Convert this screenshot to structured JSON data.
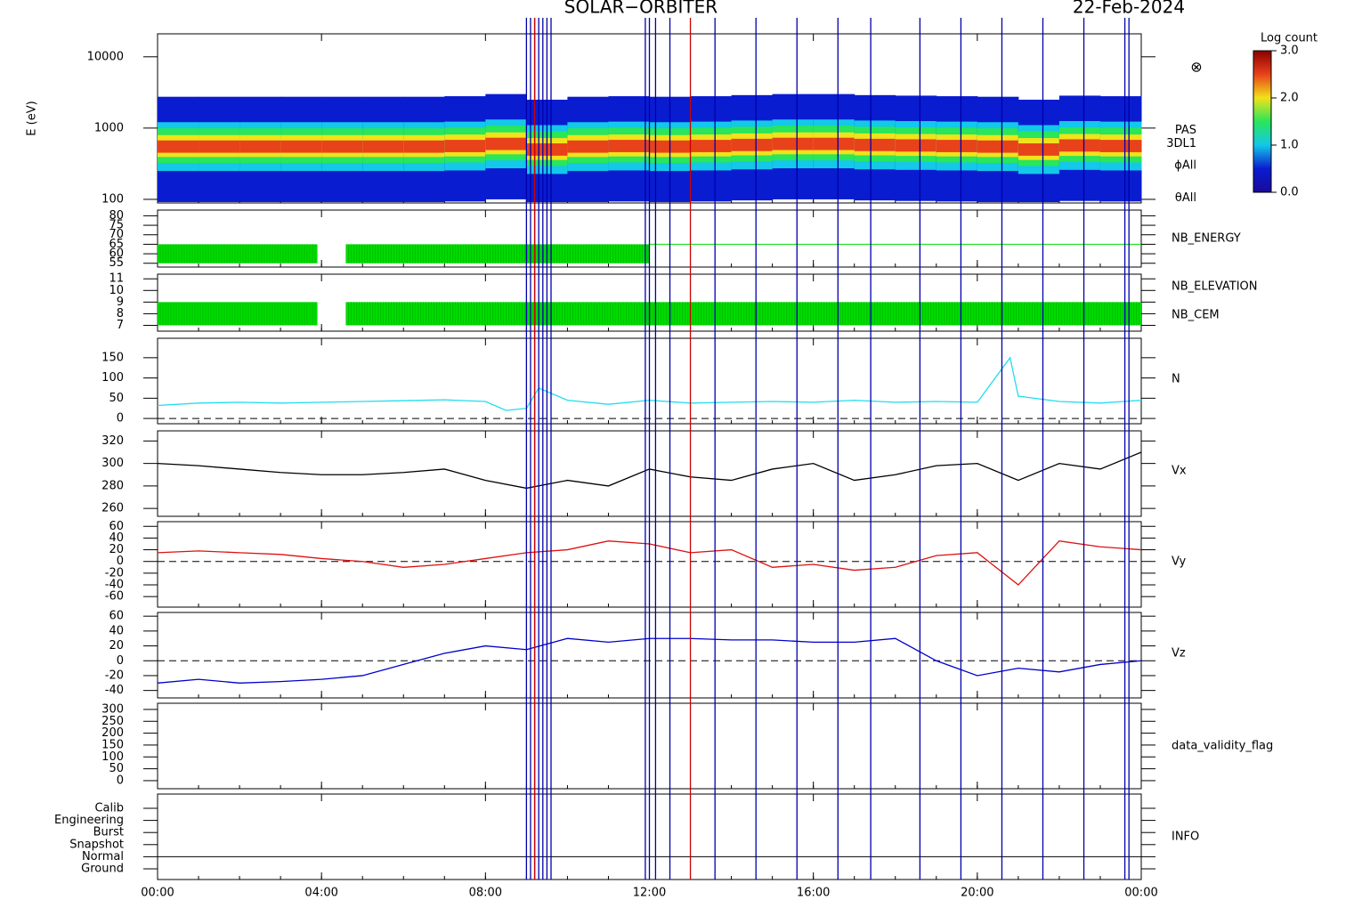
{
  "chart_data": [
    {
      "type": "spectrogram",
      "title": "SOLAR−ORBITER",
      "date": "22-Feb-2024",
      "ylabel": "E (eV)",
      "log": true,
      "ylim": [
        89,
        21000
      ],
      "yticks": [
        100,
        1000,
        10000
      ],
      "x": [
        0,
        1,
        2,
        3,
        4,
        5,
        6,
        7,
        8,
        9,
        10,
        11,
        12,
        13,
        14,
        15,
        16,
        17,
        18,
        19,
        20,
        21,
        22,
        23,
        24
      ],
      "values": [
        550,
        550,
        550,
        550,
        550,
        550,
        550,
        560,
        600,
        500,
        550,
        560,
        550,
        560,
        580,
        600,
        600,
        580,
        570,
        560,
        550,
        500,
        570,
        560,
        580
      ],
      "labels": [
        {
          "text": "PAS",
          "color": "#000000"
        },
        {
          "text": "3DL1",
          "color": "#000000"
        },
        {
          "text": "ϕAll",
          "color": "#000000"
        },
        {
          "text": "θAll",
          "color": "#000000"
        }
      ],
      "symbol": "⊗",
      "colorbar": {
        "title": "Log count",
        "lim": [
          0,
          3
        ],
        "ticks": [
          {
            "value": 0,
            "label": "0.0"
          },
          {
            "value": 1,
            "label": "1.0"
          },
          {
            "value": 2,
            "label": "2.0"
          },
          {
            "value": 3,
            "label": "3.0"
          }
        ]
      },
      "xlim": [
        0,
        24
      ],
      "xticks": [
        {
          "value": 0,
          "label": "00:00"
        },
        {
          "value": 4,
          "label": "04:00"
        },
        {
          "value": 8,
          "label": "08:00"
        },
        {
          "value": 12,
          "label": "12:00"
        },
        {
          "value": 16,
          "label": "16:00"
        },
        {
          "value": 20,
          "label": "20:00"
        },
        {
          "value": 24,
          "label": "00:00"
        }
      ],
      "event_lines": [
        {
          "color": "#0000aa",
          "x": [
            9.0,
            9.1,
            9.2,
            9.3,
            9.4,
            9.5,
            9.6,
            11.9,
            12.0,
            12.15,
            12.5,
            13.6,
            14.6,
            15.6,
            16.6,
            17.4,
            18.6,
            19.6,
            20.6,
            21.6,
            22.6,
            23.6,
            23.7
          ]
        },
        {
          "color": "#cc0000",
          "x": [
            9.2,
            13.0
          ]
        }
      ]
    },
    {
      "type": "fill",
      "ylim": [
        53,
        83
      ],
      "yticks": [
        55,
        60,
        65,
        70,
        75,
        80
      ],
      "labels": [
        {
          "text": "NB_ENERGY",
          "color": "#00cc00"
        }
      ],
      "color": "#00dd00",
      "bands": [
        {
          "lo": 55,
          "hi": 65,
          "x": [
            0,
            3.9
          ]
        },
        {
          "lo": 55,
          "hi": 65,
          "x": [
            4.6,
            12.0
          ]
        }
      ],
      "lines": [
        {
          "value": 65,
          "x": [
            12.0,
            24
          ]
        }
      ]
    },
    {
      "type": "fill",
      "ylim": [
        6.5,
        11.4
      ],
      "yticks": [
        7,
        8,
        9,
        10,
        11
      ],
      "labels": [
        {
          "text": "NB_ELEVATION",
          "color": "#00cc00"
        },
        {
          "text": "NB_CEM",
          "color": "#0000aa"
        }
      ],
      "color": "#00dd00",
      "bands": [
        {
          "lo": 7,
          "hi": 9,
          "x": [
            0,
            3.9
          ]
        },
        {
          "lo": 7,
          "hi": 9,
          "x": [
            4.6,
            24
          ]
        }
      ],
      "lines": []
    },
    {
      "type": "line",
      "ylim": [
        -13,
        198
      ],
      "yticks": [
        0,
        50,
        100,
        150
      ],
      "labels": [
        {
          "text": "N",
          "color": "#22ddee"
        }
      ],
      "refline": 0,
      "series": [
        {
          "color": "#22ddee",
          "x": [
            0,
            1,
            2,
            3,
            4,
            5,
            6,
            7,
            8,
            8.5,
            9,
            9.3,
            10,
            11,
            12,
            13,
            14,
            15,
            16,
            17,
            18,
            19,
            20,
            20.8,
            21,
            22,
            23,
            24
          ],
          "values": [
            32,
            38,
            40,
            38,
            40,
            42,
            44,
            46,
            42,
            20,
            25,
            75,
            45,
            35,
            45,
            38,
            40,
            42,
            40,
            45,
            40,
            42,
            40,
            150,
            55,
            42,
            38,
            45
          ]
        }
      ]
    },
    {
      "type": "line",
      "ylim": [
        253,
        329
      ],
      "yticks": [
        260,
        280,
        300,
        320
      ],
      "labels": [
        {
          "text": "Vx",
          "color": "#000000"
        }
      ],
      "series": [
        {
          "color": "#000000",
          "x": [
            0,
            1,
            2,
            3,
            4,
            5,
            6,
            7,
            8,
            9,
            10,
            11,
            12,
            13,
            14,
            15,
            16,
            17,
            18,
            19,
            20,
            21,
            22,
            23,
            24
          ],
          "values": [
            300,
            298,
            295,
            292,
            290,
            290,
            292,
            295,
            285,
            278,
            285,
            280,
            295,
            288,
            285,
            295,
            300,
            285,
            290,
            298,
            300,
            285,
            300,
            295,
            310
          ]
        }
      ]
    },
    {
      "type": "line",
      "ylim": [
        -78,
        68
      ],
      "yticks": [
        -60,
        -40,
        -20,
        0,
        20,
        40,
        60
      ],
      "labels": [
        {
          "text": "Vy",
          "color": "#dd1111"
        }
      ],
      "refline": 0,
      "series": [
        {
          "color": "#dd1111",
          "x": [
            0,
            1,
            2,
            3,
            4,
            5,
            6,
            7,
            8,
            9,
            10,
            11,
            12,
            13,
            14,
            15,
            16,
            17,
            18,
            19,
            20,
            21,
            22,
            23,
            24
          ],
          "values": [
            15,
            18,
            15,
            12,
            5,
            0,
            -10,
            -5,
            5,
            15,
            20,
            35,
            30,
            15,
            20,
            -10,
            -5,
            -15,
            -10,
            10,
            15,
            -40,
            35,
            25,
            20
          ]
        }
      ]
    },
    {
      "type": "line",
      "ylim": [
        -50,
        65
      ],
      "yticks": [
        -40,
        -20,
        0,
        20,
        40,
        60
      ],
      "labels": [
        {
          "text": "Vz",
          "color": "#0000cc"
        }
      ],
      "refline": 0,
      "series": [
        {
          "color": "#0000cc",
          "x": [
            0,
            1,
            2,
            3,
            4,
            5,
            6,
            7,
            8,
            9,
            10,
            11,
            12,
            13,
            14,
            15,
            16,
            17,
            18,
            19,
            20,
            21,
            22,
            23,
            24
          ],
          "values": [
            -30,
            -25,
            -30,
            -28,
            -25,
            -20,
            -5,
            10,
            20,
            15,
            30,
            25,
            30,
            30,
            28,
            28,
            25,
            25,
            30,
            0,
            -20,
            -10,
            -15,
            -5,
            0
          ]
        }
      ]
    },
    {
      "type": "empty",
      "ylim": [
        -34,
        326
      ],
      "yticks": [
        0,
        50,
        100,
        150,
        200,
        250,
        300
      ],
      "labels": [
        {
          "text": "data_validity_flag",
          "color": "#000000"
        }
      ]
    },
    {
      "type": "state",
      "categories": [
        "Calib",
        "Engineering",
        "Burst",
        "Snapshot",
        "Normal",
        "Ground"
      ],
      "value": "Normal",
      "labels": [
        {
          "text": "INFO",
          "color": "#000000"
        }
      ]
    }
  ]
}
